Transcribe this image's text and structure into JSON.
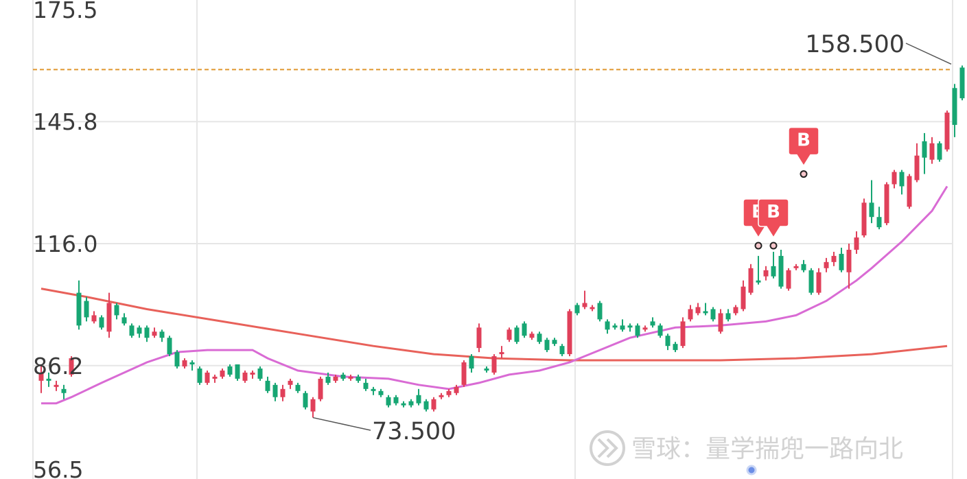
{
  "chart_data": {
    "type": "candlestick",
    "title": "",
    "xlabel": "",
    "ylabel": "",
    "ylim": [
      56.5,
      175.5
    ],
    "y_ticks": [
      "175.5",
      "145.8",
      "116.0",
      "86.2",
      "56.5"
    ],
    "grid": true,
    "colors": {
      "up": "#e0405a",
      "down": "#17a673",
      "ma_short": "#d96bd4",
      "ma_long": "#e8615a",
      "ref_line": "#e0962f",
      "marker": "#ef4d59",
      "grid": "#e6e6e6"
    },
    "reference_line": {
      "value": 158.5,
      "style": "dashed"
    },
    "annotations": [
      {
        "label": "158.500",
        "value": 158.5,
        "at": "last"
      },
      {
        "label": "73.500",
        "value": 73.5,
        "at": "low"
      }
    ],
    "markers": [
      {
        "label": "B",
        "index": 95,
        "price": 115.5
      },
      {
        "label": "B",
        "index": 97,
        "price": 115.5
      },
      {
        "label": "B",
        "index": 101,
        "price": 133.0
      }
    ],
    "candles": [
      [
        82.5,
        84.5,
        79.5,
        86.5
      ],
      [
        83.0,
        82.5,
        81.0,
        84.5
      ],
      [
        81.0,
        81.5,
        80.0,
        82.5
      ],
      [
        80.5,
        79.5,
        78.0,
        81.5
      ],
      [
        84.0,
        88.0,
        83.5,
        88.5
      ],
      [
        104.0,
        96.0,
        95.0,
        107.0
      ],
      [
        102.0,
        98.0,
        97.0,
        103.0
      ],
      [
        97.0,
        98.5,
        96.5,
        99.5
      ],
      [
        98.0,
        95.5,
        95.0,
        98.5
      ],
      [
        94.5,
        101.5,
        93.0,
        104.0
      ],
      [
        101.0,
        98.5,
        97.5,
        101.5
      ],
      [
        98.0,
        96.5,
        96.0,
        99.0
      ],
      [
        96.0,
        93.5,
        93.0,
        96.5
      ],
      [
        95.5,
        94.0,
        93.0,
        96.0
      ],
      [
        95.5,
        93.0,
        92.0,
        96.0
      ],
      [
        93.5,
        94.5,
        93.0,
        95.5
      ],
      [
        94.5,
        93.0,
        92.0,
        95.0
      ],
      [
        93.0,
        89.0,
        88.5,
        93.5
      ],
      [
        89.5,
        86.0,
        85.5,
        90.0
      ],
      [
        86.0,
        87.5,
        85.5,
        88.0
      ],
      [
        87.0,
        86.5,
        85.0,
        87.5
      ],
      [
        85.5,
        82.0,
        81.5,
        86.0
      ],
      [
        82.0,
        84.5,
        81.5,
        85.0
      ],
      [
        83.0,
        83.5,
        82.0,
        84.0
      ],
      [
        83.5,
        85.0,
        83.0,
        85.5
      ],
      [
        86.0,
        84.0,
        83.5,
        86.5
      ],
      [
        86.5,
        83.0,
        82.5,
        86.5
      ],
      [
        82.5,
        84.5,
        82.0,
        85.0
      ],
      [
        84.0,
        84.5,
        83.0,
        85.0
      ],
      [
        85.5,
        83.0,
        82.5,
        86.0
      ],
      [
        82.5,
        80.0,
        79.5,
        83.5
      ],
      [
        81.5,
        78.5,
        77.5,
        82.0
      ],
      [
        78.5,
        80.5,
        77.5,
        81.5
      ],
      [
        81.5,
        82.5,
        80.5,
        83.0
      ],
      [
        81.5,
        80.0,
        79.5,
        82.0
      ],
      [
        79.5,
        76.0,
        75.5,
        80.0
      ],
      [
        75.0,
        78.0,
        73.5,
        78.5
      ],
      [
        78.0,
        83.0,
        77.5,
        83.5
      ],
      [
        83.5,
        82.0,
        81.5,
        84.5
      ],
      [
        82.5,
        83.5,
        82.0,
        84.0
      ],
      [
        84.0,
        83.0,
        82.5,
        84.5
      ],
      [
        83.0,
        83.5,
        82.5,
        84.0
      ],
      [
        83.5,
        82.5,
        82.0,
        84.0
      ],
      [
        82.0,
        80.5,
        80.0,
        83.0
      ],
      [
        80.5,
        80.0,
        79.0,
        81.0
      ],
      [
        80.0,
        79.0,
        78.5,
        80.5
      ],
      [
        78.5,
        76.5,
        76.0,
        79.0
      ],
      [
        78.5,
        77.0,
        76.5,
        79.0
      ],
      [
        77.0,
        76.5,
        76.0,
        77.5
      ],
      [
        77.5,
        76.5,
        76.0,
        78.0
      ],
      [
        79.0,
        77.0,
        76.5,
        80.5
      ],
      [
        77.5,
        75.5,
        75.0,
        78.0
      ],
      [
        75.5,
        78.0,
        75.0,
        78.5
      ],
      [
        78.5,
        79.0,
        78.0,
        79.5
      ],
      [
        79.0,
        80.0,
        78.5,
        80.5
      ],
      [
        79.5,
        81.0,
        79.0,
        81.5
      ],
      [
        81.5,
        87.0,
        81.0,
        87.5
      ],
      [
        88.5,
        85.5,
        84.5,
        89.0
      ],
      [
        90.5,
        95.5,
        89.5,
        96.5
      ],
      [
        85.5,
        85.0,
        84.5,
        86.0
      ],
      [
        84.5,
        88.5,
        84.0,
        89.0
      ],
      [
        89.0,
        89.5,
        88.0,
        91.0
      ],
      [
        92.5,
        95.0,
        92.0,
        95.5
      ],
      [
        95.5,
        92.0,
        91.5,
        96.0
      ],
      [
        96.5,
        93.5,
        93.0,
        97.0
      ],
      [
        93.0,
        94.0,
        92.5,
        94.5
      ],
      [
        94.0,
        92.0,
        91.5,
        94.5
      ],
      [
        92.5,
        90.0,
        89.5,
        93.0
      ],
      [
        92.5,
        91.5,
        91.0,
        93.0
      ],
      [
        91.0,
        89.0,
        88.5,
        91.5
      ],
      [
        89.0,
        99.5,
        88.5,
        100.0
      ],
      [
        101.0,
        99.0,
        98.5,
        101.5
      ],
      [
        100.5,
        101.5,
        100.0,
        104.5
      ],
      [
        100.0,
        100.5,
        99.5,
        101.0
      ],
      [
        101.5,
        97.5,
        97.0,
        102.0
      ],
      [
        97.0,
        95.0,
        94.0,
        97.5
      ],
      [
        96.0,
        95.5,
        95.0,
        96.5
      ],
      [
        96.0,
        95.0,
        94.5,
        97.5
      ],
      [
        96.0,
        95.5,
        94.5,
        96.5
      ],
      [
        96.0,
        93.5,
        93.0,
        96.5
      ],
      [
        95.0,
        95.5,
        94.5,
        96.0
      ],
      [
        97.0,
        96.0,
        95.5,
        98.0
      ],
      [
        96.0,
        93.5,
        93.0,
        96.5
      ],
      [
        93.5,
        91.0,
        90.0,
        94.0
      ],
      [
        91.5,
        90.0,
        89.5,
        92.0
      ],
      [
        91.0,
        97.0,
        90.5,
        98.0
      ],
      [
        97.5,
        100.0,
        97.0,
        101.0
      ],
      [
        99.0,
        100.5,
        98.5,
        101.5
      ],
      [
        99.5,
        99.0,
        98.5,
        101.5
      ],
      [
        100.0,
        97.5,
        97.0,
        100.5
      ],
      [
        94.5,
        99.0,
        94.0,
        100.0
      ],
      [
        99.0,
        97.5,
        97.0,
        100.0
      ],
      [
        99.0,
        100.5,
        98.5,
        101.0
      ],
      [
        100.0,
        105.5,
        99.5,
        107.0
      ],
      [
        104.0,
        110.0,
        103.5,
        111.0
      ],
      [
        107.0,
        106.5,
        106.0,
        113.0
      ],
      [
        108.0,
        109.5,
        107.0,
        110.5
      ],
      [
        110.5,
        108.0,
        107.5,
        114.0
      ],
      [
        113.0,
        105.5,
        105.0,
        114.5
      ],
      [
        105.0,
        109.5,
        104.5,
        110.0
      ],
      [
        110.0,
        110.5,
        109.5,
        111.0
      ],
      [
        111.0,
        109.5,
        109.0,
        112.0
      ],
      [
        109.5,
        104.0,
        103.5,
        110.0
      ],
      [
        104.0,
        109.0,
        103.5,
        110.0
      ],
      [
        110.0,
        111.5,
        109.0,
        112.5
      ],
      [
        111.5,
        113.0,
        110.5,
        114.0
      ],
      [
        113.5,
        109.5,
        109.0,
        115.0
      ],
      [
        109.0,
        114.5,
        105.0,
        116.0
      ],
      [
        114.5,
        117.5,
        113.5,
        119.0
      ],
      [
        118.0,
        126.0,
        117.5,
        127.0
      ],
      [
        126.0,
        122.5,
        121.0,
        131.5
      ],
      [
        122.5,
        120.0,
        119.5,
        125.0
      ],
      [
        121.0,
        130.5,
        120.5,
        131.0
      ],
      [
        130.5,
        133.5,
        129.5,
        134.0
      ],
      [
        133.5,
        130.0,
        128.0,
        134.0
      ],
      [
        125.0,
        132.5,
        124.5,
        133.0
      ],
      [
        131.5,
        137.5,
        131.0,
        140.5
      ],
      [
        141.0,
        137.0,
        133.0,
        143.0
      ],
      [
        136.5,
        140.5,
        135.5,
        142.0
      ],
      [
        140.5,
        136.5,
        136.0,
        141.0
      ],
      [
        139.0,
        148.0,
        138.5,
        148.5
      ],
      [
        154.0,
        145.0,
        142.0,
        155.0
      ],
      [
        159.0,
        151.5,
        151.0,
        159.5
      ]
    ],
    "ma_short": [
      [
        0,
        77.0
      ],
      [
        2,
        77.0
      ],
      [
        4,
        78.5
      ],
      [
        8,
        82.0
      ],
      [
        14,
        87.0
      ],
      [
        18,
        89.5
      ],
      [
        22,
        90.0
      ],
      [
        28,
        90.0
      ],
      [
        30,
        88.0
      ],
      [
        34,
        85.0
      ],
      [
        40,
        83.5
      ],
      [
        46,
        83.0
      ],
      [
        50,
        81.5
      ],
      [
        54,
        80.5
      ],
      [
        58,
        82.0
      ],
      [
        62,
        84.0
      ],
      [
        66,
        85.0
      ],
      [
        70,
        87.0
      ],
      [
        74,
        90.0
      ],
      [
        78,
        93.0
      ],
      [
        84,
        95.5
      ],
      [
        90,
        96.0
      ],
      [
        96,
        97.0
      ],
      [
        100,
        98.5
      ],
      [
        104,
        102.0
      ],
      [
        108,
        107.0
      ],
      [
        110,
        110.0
      ],
      [
        114,
        116.5
      ],
      [
        118,
        124.0
      ],
      [
        120,
        130.0
      ]
    ],
    "ma_long": [
      [
        0,
        105.0
      ],
      [
        6,
        103.0
      ],
      [
        14,
        100.0
      ],
      [
        24,
        97.0
      ],
      [
        34,
        94.0
      ],
      [
        44,
        91.0
      ],
      [
        52,
        89.0
      ],
      [
        60,
        88.0
      ],
      [
        70,
        87.5
      ],
      [
        80,
        87.5
      ],
      [
        90,
        87.5
      ],
      [
        100,
        88.0
      ],
      [
        110,
        89.0
      ],
      [
        120,
        91.0
      ]
    ]
  },
  "watermark": {
    "brand": "雪球：量学揣兜一路向北"
  }
}
